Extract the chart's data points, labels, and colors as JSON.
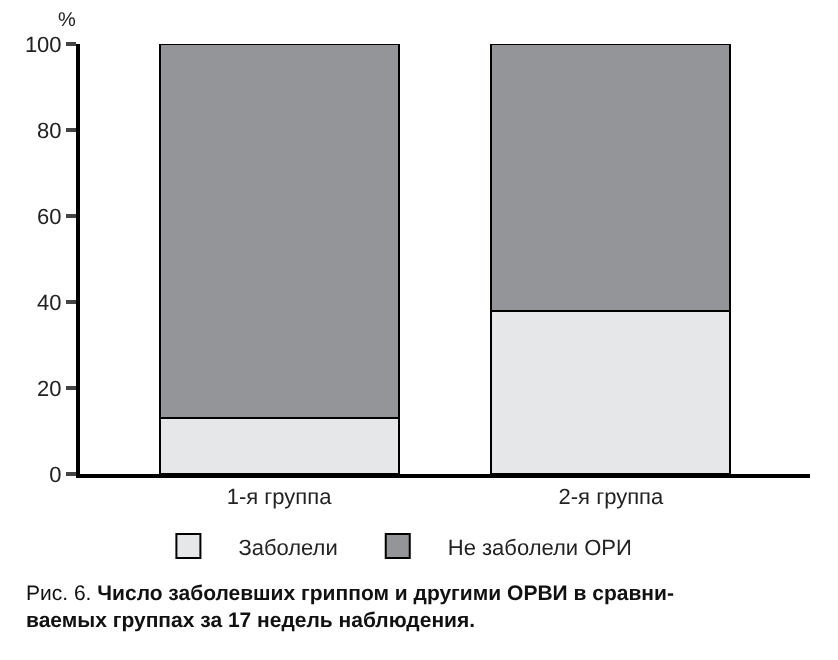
{
  "chart_data": {
    "type": "bar",
    "stacked": true,
    "ylabel": "%",
    "categories": [
      "1-я группа",
      "2-я группа"
    ],
    "series": [
      {
        "name": "Заболели",
        "color": "#e6e7e8",
        "values": [
          13,
          38
        ]
      },
      {
        "name": "Не заболели ОРИ",
        "color": "#939598",
        "values": [
          87,
          62
        ]
      }
    ],
    "ylim": [
      0,
      100
    ],
    "yticks": [
      0,
      20,
      40,
      60,
      80,
      100
    ],
    "legend": "bottom",
    "annotations": [
      "Рис. 6.",
      "Число заболевших гриппом и другими ОРВИ в сравни-\nваемых группах за 17 недель наблюдения."
    ]
  }
}
